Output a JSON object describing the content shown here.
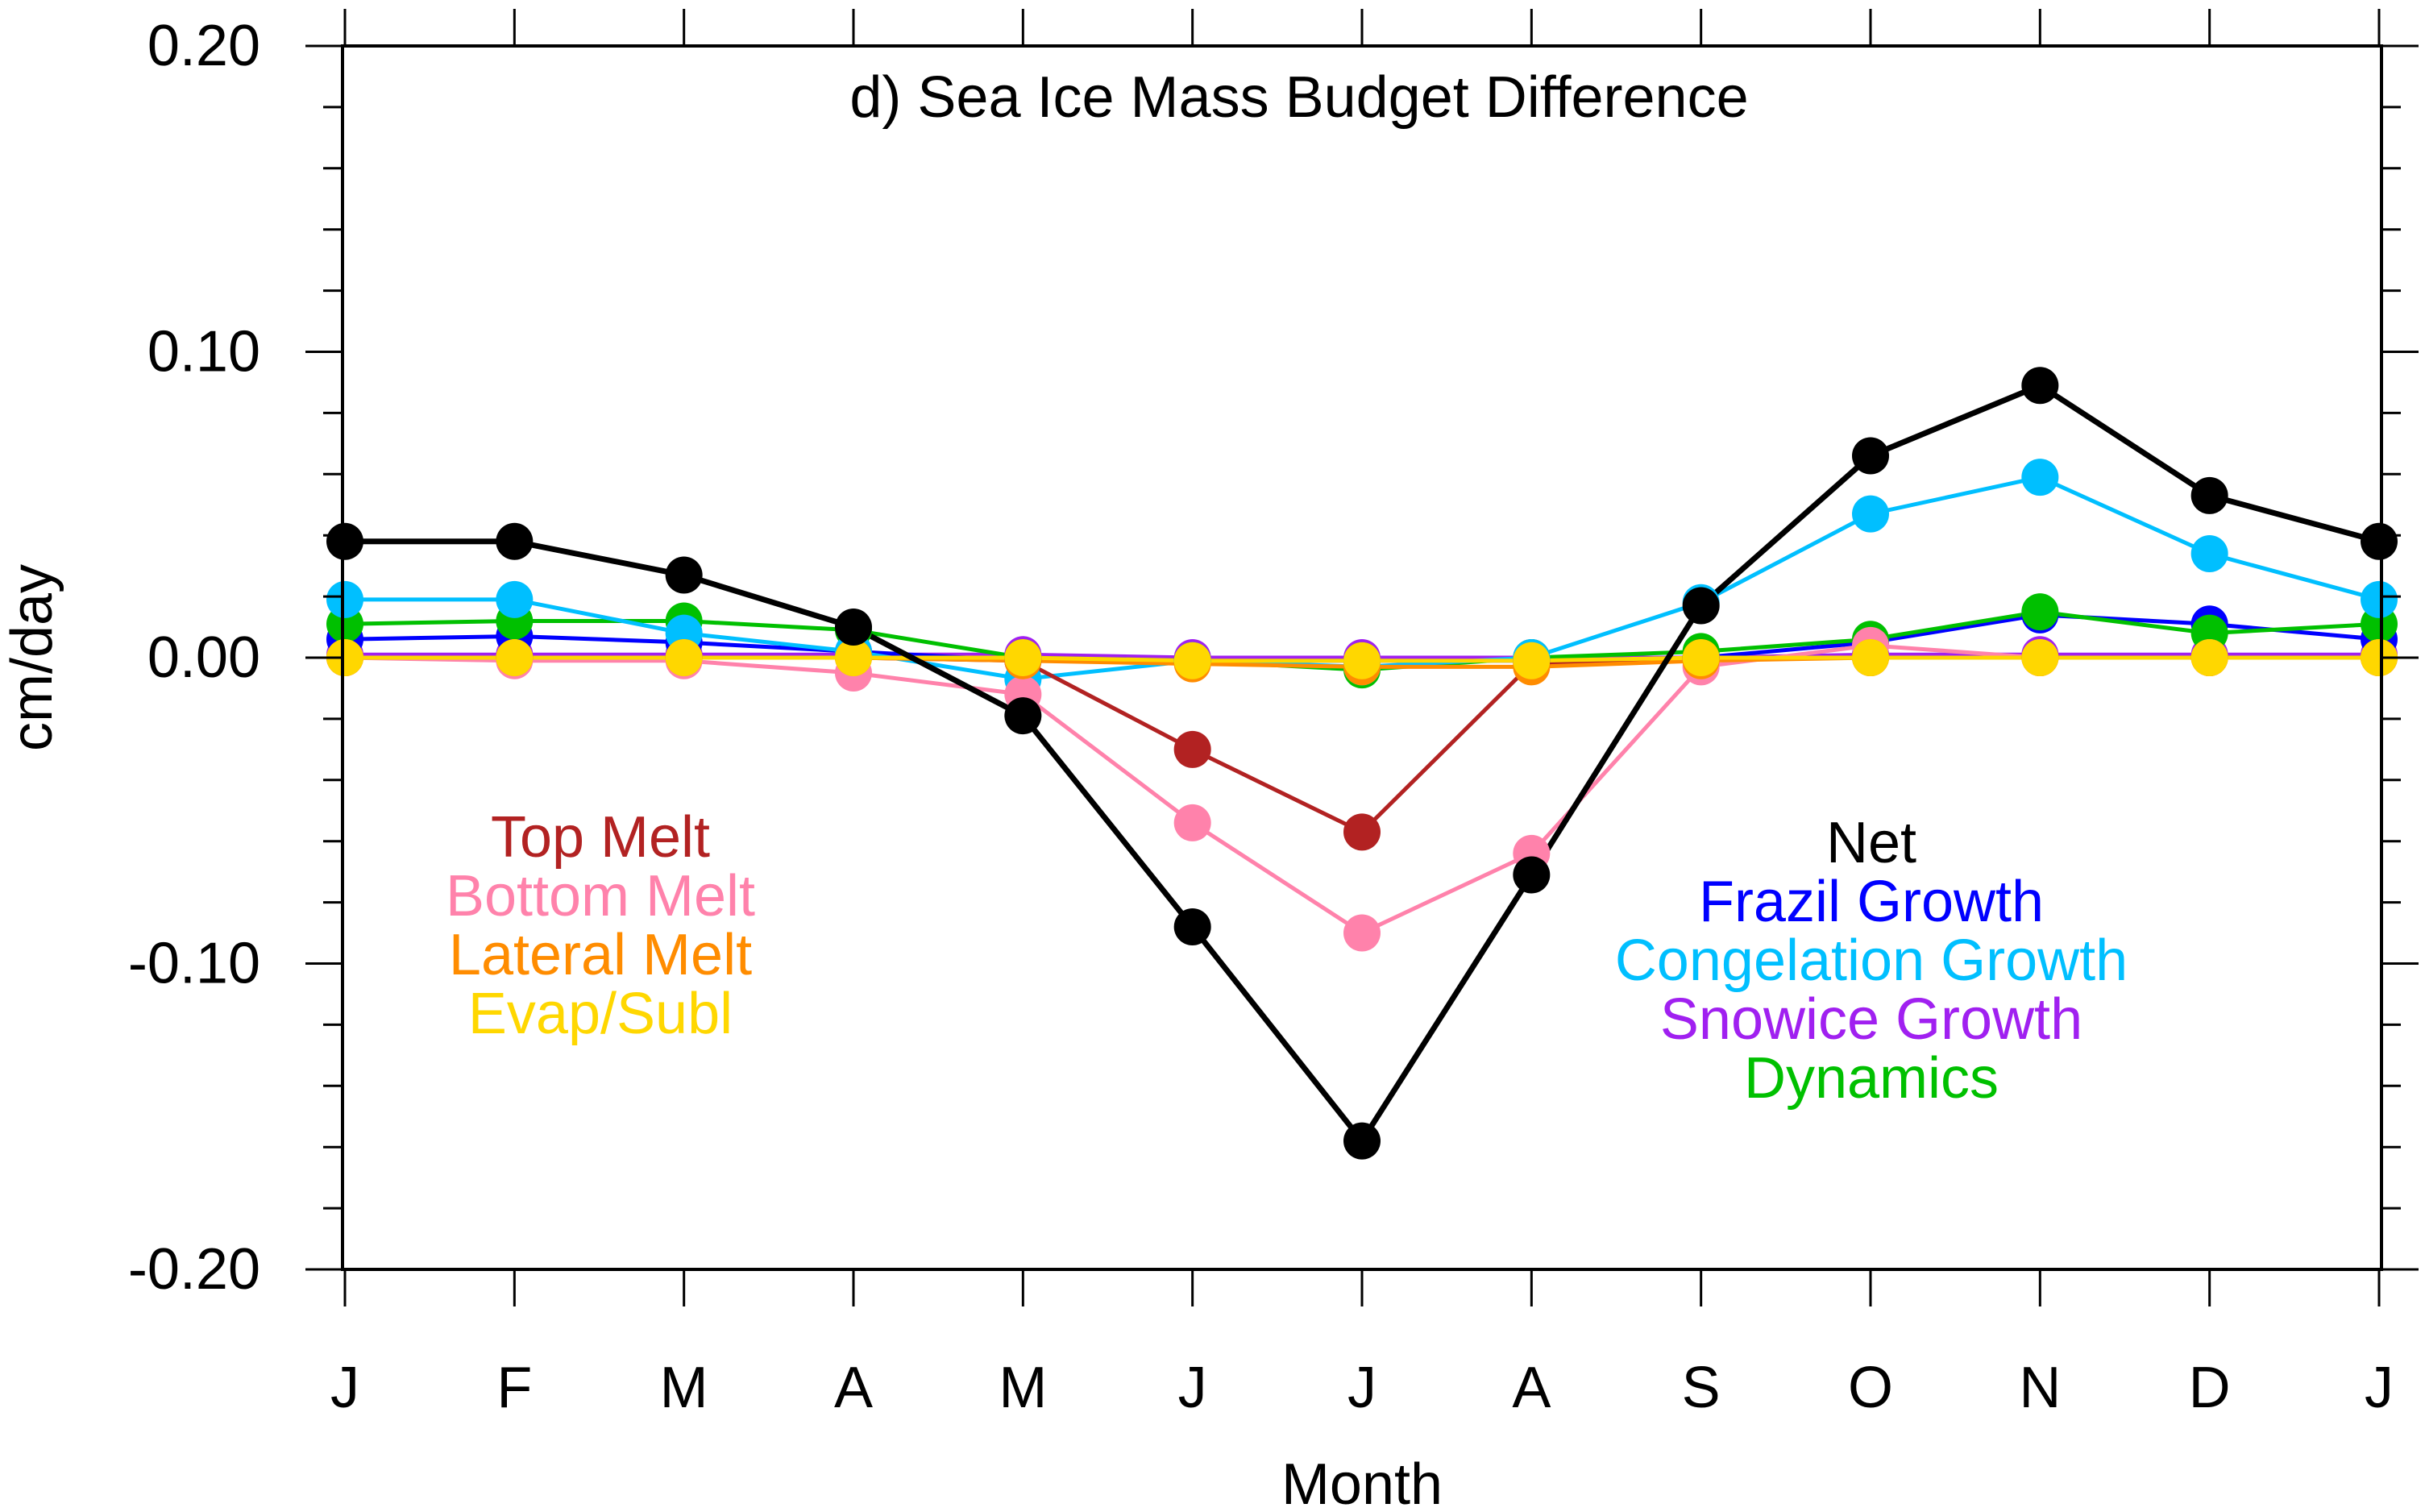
{
  "chart_data": {
    "type": "line",
    "title": "d) Sea Ice Mass Budget Difference",
    "xlabel": "Month",
    "ylabel": "cm/day",
    "categories": [
      "J",
      "F",
      "M",
      "A",
      "M",
      "J",
      "J",
      "A",
      "S",
      "O",
      "N",
      "D",
      "J"
    ],
    "ylim": [
      -0.2,
      0.2
    ],
    "yticks": [
      {
        "value": -0.2,
        "label": "-0.20"
      },
      {
        "value": -0.1,
        "label": "-0.10"
      },
      {
        "value": 0.0,
        "label": "0.00"
      },
      {
        "value": 0.1,
        "label": "0.10"
      },
      {
        "value": 0.2,
        "label": "0.20"
      }
    ],
    "minor_tick_step": 0.02,
    "zero_line": true,
    "grid": false,
    "series": [
      {
        "key": "snowice",
        "name": "Snowice Growth",
        "color": "#a020f0",
        "values": [
          0.001,
          0.001,
          0.001,
          0.001,
          0.001,
          0.0,
          0.0,
          0.0,
          0.0,
          0.001,
          0.001,
          0.001,
          0.001
        ]
      },
      {
        "key": "frazil",
        "name": "Frazil Growth",
        "color": "#0000ff",
        "values": [
          0.006,
          0.007,
          0.005,
          0.002,
          -0.001,
          -0.001,
          -0.001,
          -0.001,
          0.0,
          0.005,
          0.014,
          0.011,
          0.006
        ]
      },
      {
        "key": "dynamics",
        "name": "Dynamics",
        "color": "#00c000",
        "values": [
          0.011,
          0.012,
          0.012,
          0.009,
          0.0,
          -0.001,
          -0.004,
          0.0,
          0.002,
          0.006,
          0.015,
          0.008,
          0.011
        ]
      },
      {
        "key": "congelation",
        "name": "Congelation Growth",
        "color": "#00bfff",
        "values": [
          0.019,
          0.019,
          0.008,
          0.002,
          -0.007,
          -0.001,
          -0.003,
          0.0,
          0.018,
          0.047,
          0.059,
          0.034,
          0.019
        ]
      },
      {
        "key": "top_melt",
        "name": "Top Melt",
        "color": "#b22222",
        "values": [
          0.0,
          0.0,
          0.0,
          0.0,
          -0.001,
          -0.03,
          -0.057,
          -0.002,
          0.0,
          0.0,
          0.0,
          0.0,
          0.0
        ]
      },
      {
        "key": "bottom_melt",
        "name": "Bottom Melt",
        "color": "#ff82ab",
        "values": [
          0.0,
          -0.001,
          -0.001,
          -0.005,
          -0.012,
          -0.054,
          -0.09,
          -0.064,
          -0.003,
          0.004,
          0.0,
          0.0,
          0.0
        ]
      },
      {
        "key": "lateral_melt",
        "name": "Lateral Melt",
        "color": "#ff8c00",
        "values": [
          0.0,
          0.0,
          0.0,
          0.0,
          -0.001,
          -0.002,
          -0.003,
          -0.003,
          -0.001,
          0.0,
          0.0,
          0.0,
          0.0
        ]
      },
      {
        "key": "evap",
        "name": "Evap/Subl",
        "color": "#ffd700",
        "values": [
          0.0,
          0.0,
          0.0,
          0.0,
          0.0,
          -0.001,
          -0.001,
          -0.001,
          0.0,
          0.0,
          0.0,
          0.0,
          0.0
        ]
      },
      {
        "key": "net",
        "name": "Net",
        "color": "#000000",
        "values": [
          0.038,
          0.038,
          0.027,
          0.01,
          -0.019,
          -0.088,
          -0.158,
          -0.071,
          0.017,
          0.066,
          0.089,
          0.053,
          0.038
        ]
      }
    ],
    "legend": {
      "placement": "inside, two text groups (lower-left and lower-right)",
      "left": [
        "Top Melt",
        "Bottom Melt",
        "Lateral Melt",
        "Evap/Subl"
      ],
      "right": [
        "Net",
        "Frazil Growth",
        "Congelation Growth",
        "Snowice Growth",
        "Dynamics"
      ]
    }
  }
}
